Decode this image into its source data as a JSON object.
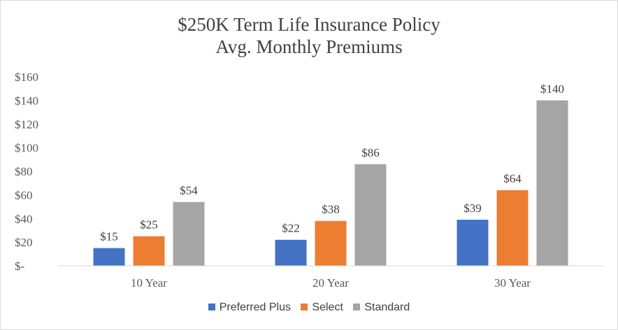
{
  "chart_data": {
    "type": "bar",
    "title_lines": [
      "$250K Term Life Insurance Policy",
      "Avg. Monthly Premiums"
    ],
    "categories": [
      "10 Year",
      "20 Year",
      "30 Year"
    ],
    "series": [
      {
        "name": "Preferred Plus",
        "color": "#4472c4",
        "values": [
          15,
          22,
          39
        ],
        "labels": [
          "$15",
          "$22",
          "$39"
        ]
      },
      {
        "name": "Select",
        "color": "#ed7d31",
        "values": [
          25,
          38,
          64
        ],
        "labels": [
          "$25",
          "$38",
          "$64"
        ]
      },
      {
        "name": "Standard",
        "color": "#a5a5a5",
        "values": [
          54,
          86,
          140
        ],
        "labels": [
          "$54",
          "$86",
          "$140"
        ]
      }
    ],
    "y_ticks": [
      {
        "value": 0,
        "label": "$-"
      },
      {
        "value": 20,
        "label": "$20"
      },
      {
        "value": 40,
        "label": "$40"
      },
      {
        "value": 60,
        "label": "$60"
      },
      {
        "value": 80,
        "label": "$80"
      },
      {
        "value": 100,
        "label": "$100"
      },
      {
        "value": 120,
        "label": "$120"
      },
      {
        "value": 140,
        "label": "$140"
      },
      {
        "value": 160,
        "label": "$160"
      }
    ],
    "ylim": [
      0,
      160
    ],
    "grid": false,
    "legend_position": "bottom"
  }
}
